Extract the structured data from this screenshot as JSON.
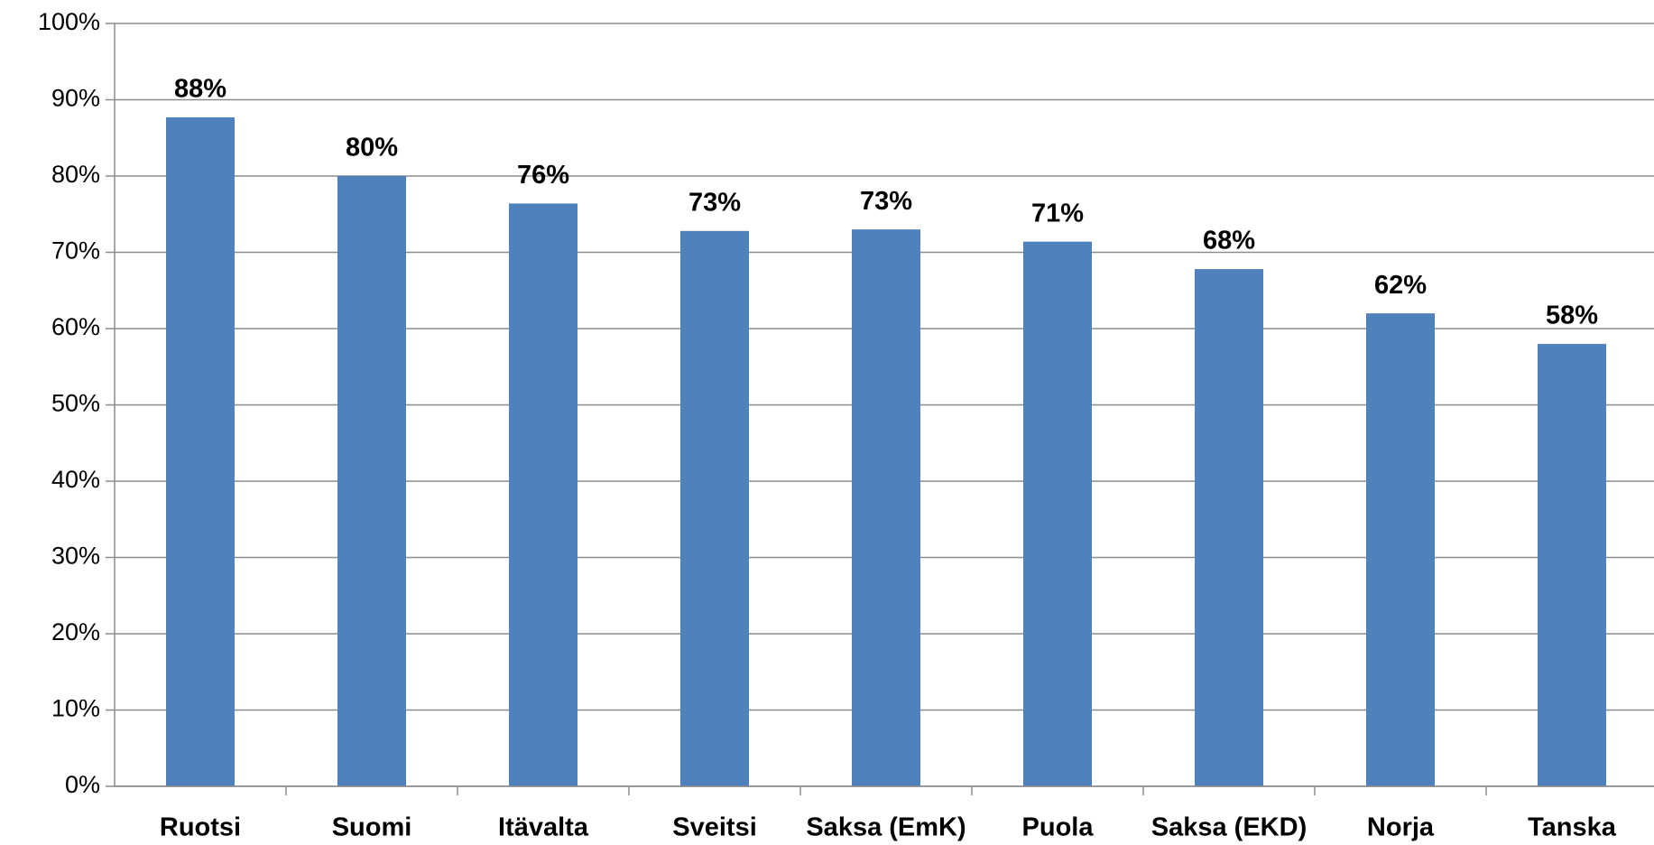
{
  "chart_data": {
    "type": "bar",
    "categories": [
      "Ruotsi",
      "Suomi",
      "Itävalta",
      "Sveitsi",
      "Saksa (EmK)",
      "Puola",
      "Saksa (EKD)",
      "Norja",
      "Tanska"
    ],
    "values": [
      87.7,
      80,
      76.4,
      72.8,
      73,
      71.4,
      67.8,
      62,
      58
    ],
    "value_labels": [
      "88%",
      "80%",
      "76%",
      "73%",
      "73%",
      "71%",
      "68%",
      "62%",
      "58%"
    ],
    "color": "#4f81bd",
    "ylim": [
      0,
      100
    ],
    "yticks": [
      {
        "value": 0,
        "label": "0%"
      },
      {
        "value": 10,
        "label": "10%"
      },
      {
        "value": 20,
        "label": "20%"
      },
      {
        "value": 30,
        "label": "30%"
      },
      {
        "value": 40,
        "label": "40%"
      },
      {
        "value": 50,
        "label": "50%"
      },
      {
        "value": 60,
        "label": "60%"
      },
      {
        "value": 70,
        "label": "70%"
      },
      {
        "value": 80,
        "label": "80%"
      },
      {
        "value": 90,
        "label": "90%"
      },
      {
        "value": 100,
        "label": "100%"
      }
    ],
    "grid": true
  }
}
